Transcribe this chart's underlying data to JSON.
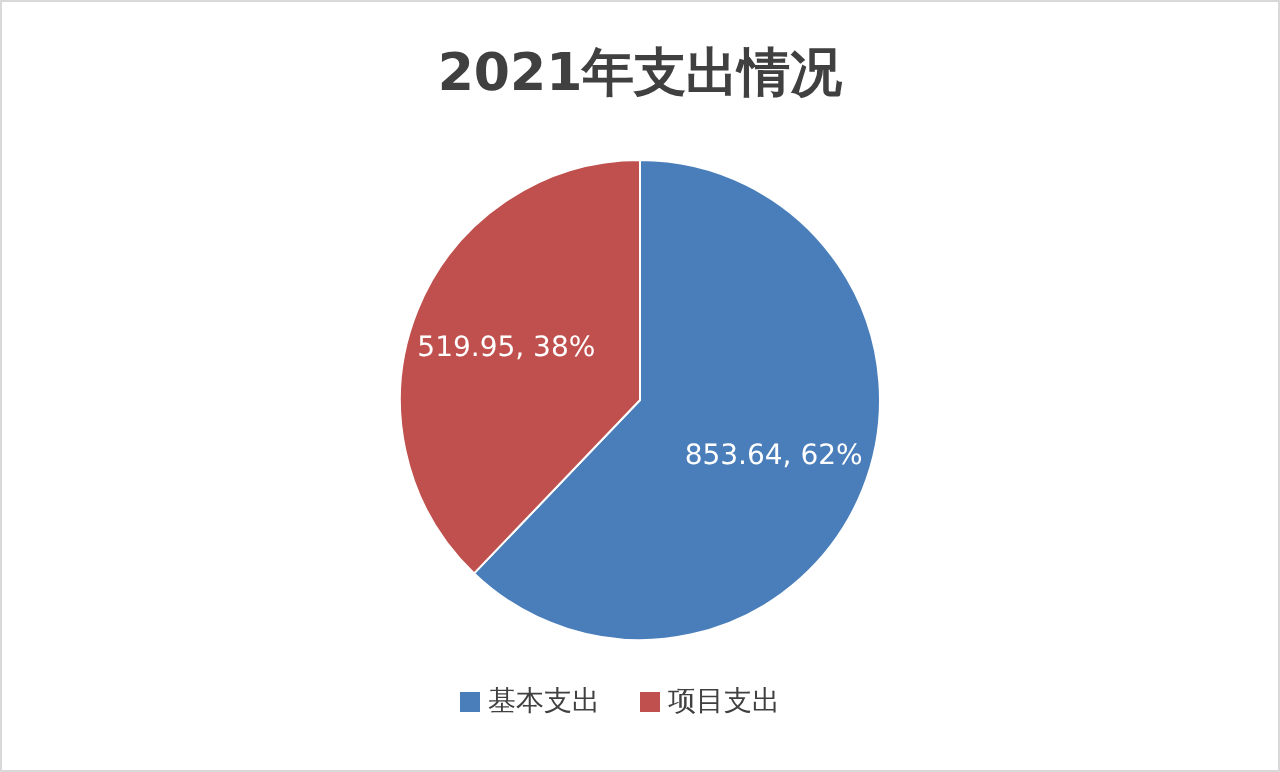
{
  "chart_data": {
    "type": "pie",
    "title": "2021年支出情况",
    "categories": [
      "基本支出",
      "项目支出"
    ],
    "values": [
      853.64,
      519.95
    ],
    "colors": [
      "#4a7ebb",
      "#c0504d"
    ],
    "value_labels": [
      "853.64, 62%",
      "519.95, 38%"
    ],
    "legend": "bottom"
  }
}
